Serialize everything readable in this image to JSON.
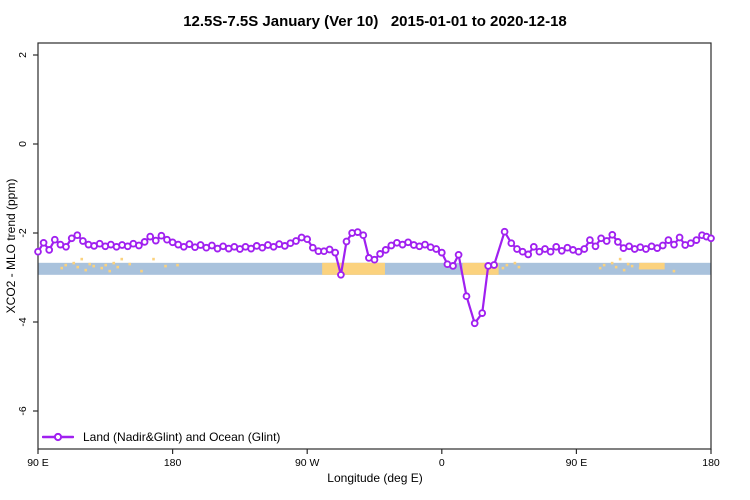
{
  "colors": {
    "line": "#A020F0",
    "marker_fill": "#FFFFFF",
    "ocean_band": "#A9C2DC",
    "land_band": "#FBD27E",
    "axis": "#2B2B2B",
    "text": "#000000"
  },
  "chart_data": {
    "type": "line",
    "title": "12.5S-7.5S January (Ver 10)   2015-01-01 to 2020-12-18",
    "xlabel": "Longitude (deg E)",
    "ylabel": "XCO2 - MLO trend (ppm)",
    "legend_position": "bottom-left",
    "grid": false,
    "xlim": [
      90,
      540
    ],
    "ylim": [
      -6.9,
      2.35
    ],
    "x_ticks": {
      "values": [
        90,
        180,
        270,
        360,
        450,
        540
      ],
      "labels": [
        "90 E",
        "180",
        "90 W",
        "0",
        "90 E",
        "180"
      ]
    },
    "y_ticks": {
      "values": [
        2,
        0,
        -2,
        -4,
        -6
      ],
      "labels": [
        "2",
        "0",
        "-2",
        "-4",
        "-6"
      ]
    },
    "ocean_band": {
      "from": 90,
      "to": 540,
      "ymin": -2.94,
      "ymax": -2.67
    },
    "land_patches": [
      {
        "from": 105,
        "to": 151,
        "kind": "dots"
      },
      {
        "from": 153,
        "to": 188,
        "kind": "dots-sparse"
      },
      {
        "from": 280,
        "to": 322,
        "kind": "solid"
      },
      {
        "from": 374,
        "to": 398,
        "kind": "solid"
      },
      {
        "from": 400,
        "to": 413,
        "kind": "dots"
      },
      {
        "from": 465,
        "to": 492,
        "kind": "dots"
      },
      {
        "from": 492,
        "to": 509,
        "kind": "upper"
      },
      {
        "from": 509,
        "to": 517,
        "kind": "dots-sparse"
      }
    ],
    "series": [
      {
        "name": "Land (Nadir&Glint) and Ocean (Glint)",
        "marker": "open-circle",
        "points": [
          [
            90,
            -2.42
          ],
          [
            93.75,
            -2.22
          ],
          [
            97.5,
            -2.38
          ],
          [
            101.25,
            -2.15
          ],
          [
            105,
            -2.26
          ],
          [
            108.75,
            -2.31
          ],
          [
            112.5,
            -2.12
          ],
          [
            116.25,
            -2.05
          ],
          [
            120,
            -2.18
          ],
          [
            123.75,
            -2.26
          ],
          [
            127.5,
            -2.29
          ],
          [
            131.25,
            -2.24
          ],
          [
            135,
            -2.3
          ],
          [
            138.75,
            -2.26
          ],
          [
            142.5,
            -2.31
          ],
          [
            146.25,
            -2.27
          ],
          [
            150,
            -2.3
          ],
          [
            153.75,
            -2.24
          ],
          [
            157.5,
            -2.28
          ],
          [
            161.25,
            -2.2
          ],
          [
            165,
            -2.08
          ],
          [
            168.75,
            -2.17
          ],
          [
            172.5,
            -2.06
          ],
          [
            176.25,
            -2.15
          ],
          [
            180,
            -2.21
          ],
          [
            183.75,
            -2.26
          ],
          [
            187.5,
            -2.31
          ],
          [
            191.25,
            -2.25
          ],
          [
            195,
            -2.32
          ],
          [
            198.75,
            -2.27
          ],
          [
            202.5,
            -2.33
          ],
          [
            206.25,
            -2.28
          ],
          [
            210,
            -2.35
          ],
          [
            213.75,
            -2.3
          ],
          [
            217.5,
            -2.35
          ],
          [
            221.25,
            -2.31
          ],
          [
            225,
            -2.36
          ],
          [
            228.75,
            -2.31
          ],
          [
            232.5,
            -2.35
          ],
          [
            236.25,
            -2.29
          ],
          [
            240,
            -2.33
          ],
          [
            243.75,
            -2.27
          ],
          [
            247.5,
            -2.31
          ],
          [
            251.25,
            -2.25
          ],
          [
            255,
            -2.29
          ],
          [
            258.75,
            -2.23
          ],
          [
            262.5,
            -2.18
          ],
          [
            266.25,
            -2.1
          ],
          [
            270,
            -2.14
          ],
          [
            273.75,
            -2.33
          ],
          [
            277.5,
            -2.41
          ],
          [
            281.25,
            -2.41
          ],
          [
            285,
            -2.37
          ],
          [
            288.75,
            -2.44
          ],
          [
            292.5,
            -2.94
          ],
          [
            296.25,
            -2.19
          ],
          [
            300,
            -2.0
          ],
          [
            303.75,
            -1.98
          ],
          [
            307.5,
            -2.05
          ],
          [
            311.25,
            -2.56
          ],
          [
            315,
            -2.6
          ],
          [
            318.75,
            -2.47
          ],
          [
            322.5,
            -2.38
          ],
          [
            326.25,
            -2.28
          ],
          [
            330,
            -2.22
          ],
          [
            333.75,
            -2.26
          ],
          [
            337.5,
            -2.21
          ],
          [
            341.25,
            -2.27
          ],
          [
            345,
            -2.3
          ],
          [
            348.75,
            -2.26
          ],
          [
            352.5,
            -2.32
          ],
          [
            356.25,
            -2.36
          ],
          [
            360,
            -2.44
          ],
          [
            363.75,
            -2.7
          ],
          [
            367.5,
            -2.74
          ],
          [
            371.25,
            -2.49
          ],
          [
            376.5,
            -3.42
          ],
          [
            382,
            -4.03
          ],
          [
            387,
            -3.8
          ],
          [
            391,
            -2.74
          ],
          [
            395,
            -2.72
          ],
          [
            402,
            -1.97
          ],
          [
            406.5,
            -2.23
          ],
          [
            410.25,
            -2.36
          ],
          [
            414,
            -2.42
          ],
          [
            417.75,
            -2.48
          ],
          [
            421.5,
            -2.31
          ],
          [
            425.25,
            -2.42
          ],
          [
            429,
            -2.36
          ],
          [
            432.75,
            -2.42
          ],
          [
            436.5,
            -2.31
          ],
          [
            440.25,
            -2.4
          ],
          [
            444,
            -2.33
          ],
          [
            447.75,
            -2.38
          ],
          [
            451.5,
            -2.42
          ],
          [
            455.25,
            -2.36
          ],
          [
            459,
            -2.16
          ],
          [
            462.75,
            -2.3
          ],
          [
            466.5,
            -2.12
          ],
          [
            470.25,
            -2.18
          ],
          [
            474,
            -2.04
          ],
          [
            477.75,
            -2.2
          ],
          [
            481.5,
            -2.34
          ],
          [
            485.25,
            -2.3
          ],
          [
            489,
            -2.36
          ],
          [
            492.75,
            -2.32
          ],
          [
            496.5,
            -2.36
          ],
          [
            500.25,
            -2.3
          ],
          [
            504,
            -2.34
          ],
          [
            507.75,
            -2.28
          ],
          [
            511.5,
            -2.16
          ],
          [
            515.25,
            -2.26
          ],
          [
            519,
            -2.1
          ],
          [
            522.75,
            -2.27
          ],
          [
            526.5,
            -2.23
          ],
          [
            530.25,
            -2.16
          ],
          [
            534,
            -2.05
          ],
          [
            537,
            -2.08
          ],
          [
            540,
            -2.12
          ]
        ]
      }
    ]
  }
}
